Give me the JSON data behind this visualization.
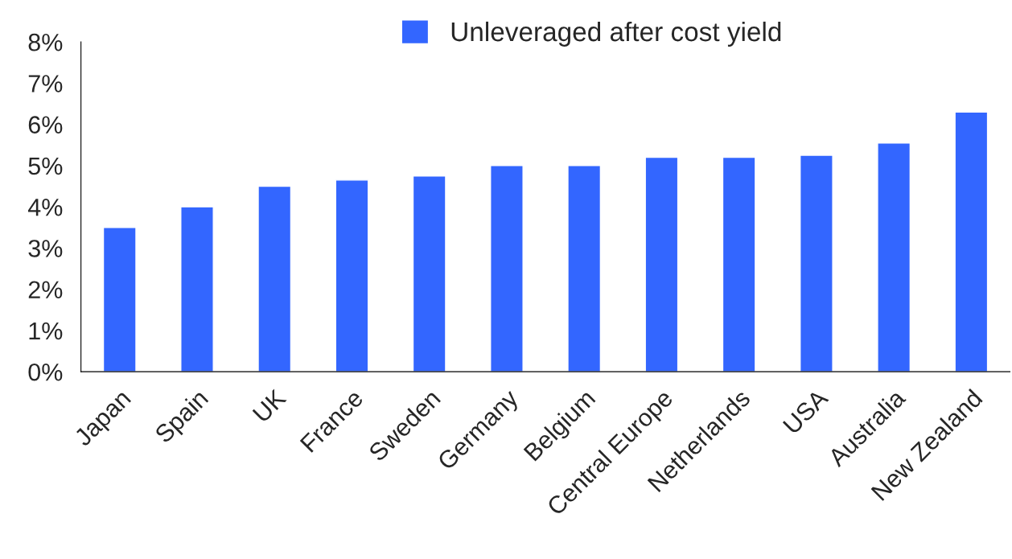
{
  "chart_data": {
    "type": "bar",
    "categories": [
      "Japan",
      "Spain",
      "UK",
      "France",
      "Sweden",
      "Germany",
      "Belgium",
      "Central Europe",
      "Netherlands",
      "USA",
      "Australia",
      "New Zealand"
    ],
    "series": [
      {
        "name": "Unleveraged after cost yield",
        "color": "#3366ff",
        "values": [
          3.5,
          4.0,
          4.5,
          4.65,
          4.75,
          5.0,
          5.0,
          5.2,
          5.2,
          5.25,
          5.55,
          6.3
        ]
      }
    ],
    "ylim": [
      0,
      8
    ],
    "yticks": [
      {
        "value": 0,
        "label": "0%"
      },
      {
        "value": 1,
        "label": "1%"
      },
      {
        "value": 2,
        "label": "2%"
      },
      {
        "value": 3,
        "label": "3%"
      },
      {
        "value": 4,
        "label": "4%"
      },
      {
        "value": 5,
        "label": "5%"
      },
      {
        "value": 6,
        "label": "6%"
      },
      {
        "value": 7,
        "label": "7%"
      },
      {
        "value": 8,
        "label": "8%"
      }
    ],
    "grid": false,
    "legend": "top"
  }
}
